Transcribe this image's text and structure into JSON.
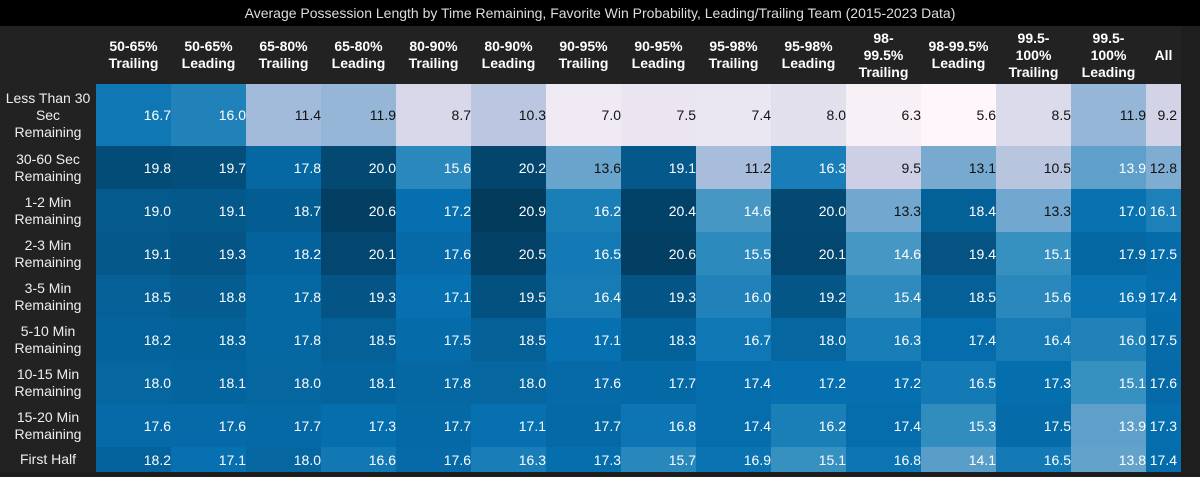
{
  "chart_data": {
    "type": "heatmap",
    "title": "Average Possession Length by Time Remaining, Favorite Win Probability, Leading/Trailing Team (2015-2023 Data)",
    "columns": [
      [
        "50-65%",
        "Trailing"
      ],
      [
        "50-65%",
        "Leading"
      ],
      [
        "65-80%",
        "Trailing"
      ],
      [
        "65-80%",
        "Leading"
      ],
      [
        "80-90%",
        "Trailing"
      ],
      [
        "80-90%",
        "Leading"
      ],
      [
        "90-95%",
        "Trailing"
      ],
      [
        "90-95%",
        "Leading"
      ],
      [
        "95-98%",
        "Trailing"
      ],
      [
        "95-98%",
        "Leading"
      ],
      [
        "98-",
        "99.5%",
        "Trailing"
      ],
      [
        "98-99.5%",
        "Leading"
      ],
      [
        "99.5-",
        "100%",
        "Trailing"
      ],
      [
        "99.5-",
        "100%",
        "Leading"
      ],
      [
        "All"
      ]
    ],
    "rows": [
      [
        "Less Than 30",
        "Sec",
        "Remaining"
      ],
      [
        "30-60 Sec",
        "Remaining"
      ],
      [
        "1-2 Min",
        "Remaining"
      ],
      [
        "2-3 Min",
        "Remaining"
      ],
      [
        "3-5 Min",
        "Remaining"
      ],
      [
        "5-10 Min",
        "Remaining"
      ],
      [
        "10-15 Min",
        "Remaining"
      ],
      [
        "15-20 Min",
        "Remaining"
      ],
      [
        "First Half"
      ]
    ],
    "values": [
      [
        16.7,
        16.0,
        11.4,
        11.9,
        8.7,
        10.3,
        7.0,
        7.5,
        7.4,
        8.0,
        6.3,
        5.6,
        8.5,
        11.9,
        9.2
      ],
      [
        19.8,
        19.7,
        17.8,
        20.0,
        15.6,
        20.2,
        13.6,
        19.1,
        11.2,
        16.3,
        9.5,
        13.1,
        10.5,
        13.9,
        12.8
      ],
      [
        19.0,
        19.1,
        18.7,
        20.6,
        17.2,
        20.9,
        16.2,
        20.4,
        14.6,
        20.0,
        13.3,
        18.4,
        13.3,
        17.0,
        16.1
      ],
      [
        19.1,
        19.3,
        18.2,
        20.1,
        17.6,
        20.5,
        16.5,
        20.6,
        15.5,
        20.1,
        14.6,
        19.4,
        15.1,
        17.9,
        17.5
      ],
      [
        18.5,
        18.8,
        17.8,
        19.3,
        17.1,
        19.5,
        16.4,
        19.3,
        16.0,
        19.2,
        15.4,
        18.5,
        15.6,
        16.9,
        17.4
      ],
      [
        18.2,
        18.3,
        17.8,
        18.5,
        17.5,
        18.5,
        17.1,
        18.3,
        16.7,
        18.0,
        16.3,
        17.4,
        16.4,
        16.0,
        17.5
      ],
      [
        18.0,
        18.1,
        18.0,
        18.1,
        17.8,
        18.0,
        17.6,
        17.7,
        17.4,
        17.2,
        17.2,
        16.5,
        17.3,
        15.1,
        17.6
      ],
      [
        17.6,
        17.6,
        17.7,
        17.3,
        17.7,
        17.1,
        17.7,
        16.8,
        17.4,
        16.2,
        17.4,
        15.3,
        17.5,
        13.9,
        17.3
      ],
      [
        18.2,
        17.1,
        18.0,
        16.6,
        17.6,
        16.3,
        17.3,
        15.7,
        16.9,
        15.1,
        16.8,
        14.1,
        16.5,
        13.8,
        17.4
      ]
    ],
    "colorscale": "PuBu",
    "colors": {
      "low": "#fff7fb",
      "high": "#023858",
      "background": "#1e1e1e"
    }
  }
}
